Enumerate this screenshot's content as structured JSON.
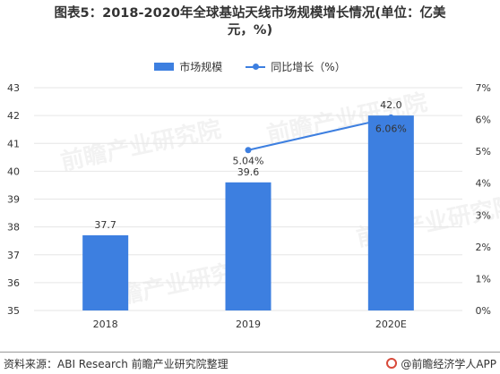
{
  "title_line1": "图表5：2018-2020年全球基站天线市场规模增长情况(单位：亿美",
  "title_line2": "元，%)",
  "legend": {
    "bar_label": "市场规模",
    "line_label": "同比增长（%）"
  },
  "colors": {
    "bar": "#3d7fe0",
    "line": "#3d7fe0",
    "grid": "#e6e6e6",
    "axis_text": "#333333"
  },
  "chart_data": {
    "type": "bar",
    "categories": [
      "2018",
      "2019",
      "2020E"
    ],
    "series": [
      {
        "name": "市场规模",
        "type": "bar",
        "axis": "left",
        "values": [
          37.7,
          39.6,
          42.0
        ],
        "labels": [
          "37.7",
          "39.6",
          "42.0"
        ]
      },
      {
        "name": "同比增长（%）",
        "type": "line",
        "axis": "right",
        "values": [
          null,
          5.04,
          6.06
        ],
        "labels": [
          "",
          "5.04%",
          "6.06%"
        ]
      }
    ],
    "y_left": {
      "min": 35,
      "max": 43,
      "ticks": [
        "35",
        "36",
        "37",
        "38",
        "39",
        "40",
        "41",
        "42",
        "43"
      ]
    },
    "y_right": {
      "min": 0,
      "max": 7,
      "ticks": [
        "0%",
        "1%",
        "2%",
        "3%",
        "4%",
        "5%",
        "6%",
        "7%"
      ]
    },
    "grid": true,
    "legend_position": "top-center"
  },
  "watermark": "前瞻产业研究院",
  "footer": {
    "source": "资料来源：ABI Research 前瞻产业研究院整理",
    "brand": "@前瞻经济学人APP"
  }
}
